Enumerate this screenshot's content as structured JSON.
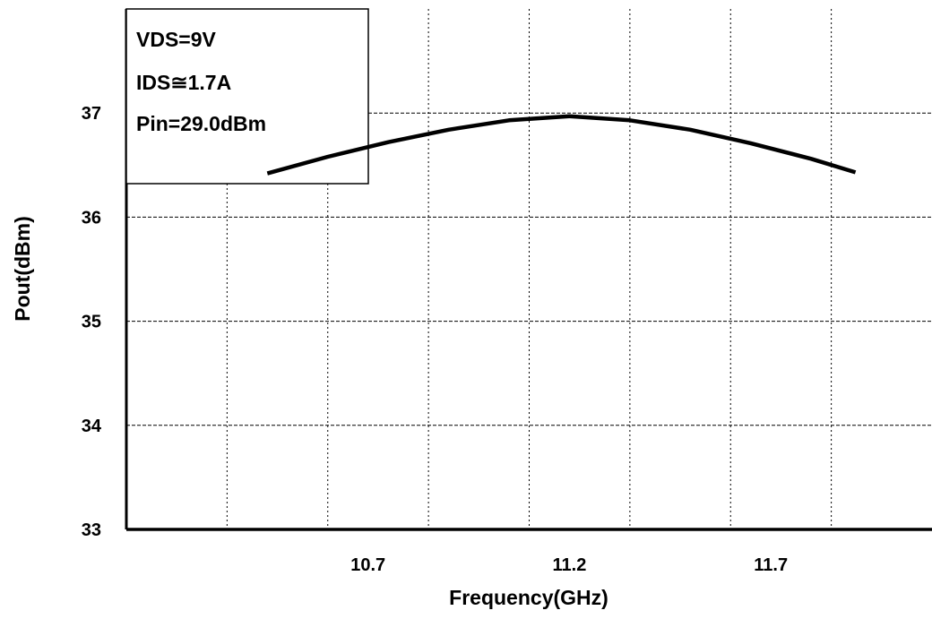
{
  "chart_data": {
    "type": "line",
    "xlabel": "Frequency(GHz)",
    "ylabel": "Pout(dBm)",
    "xlim": [
      10.1,
      12.1
    ],
    "ylim": [
      33,
      38
    ],
    "x_ticks": [
      "10.7",
      "11.2",
      "11.7"
    ],
    "x_tick_values": [
      10.7,
      11.2,
      11.7
    ],
    "y_ticks": [
      "33",
      "34",
      "35",
      "36",
      "37"
    ],
    "grid": true,
    "annotation": [
      "VDS=9V",
      "IDS≅1.7A",
      "Pin=29.0dBm"
    ],
    "series": [
      {
        "x": [
          10.45,
          10.6,
          10.75,
          10.9,
          11.05,
          11.2,
          11.35,
          11.5,
          11.65,
          11.8,
          11.91
        ],
        "values": [
          36.42,
          36.58,
          36.72,
          36.84,
          36.93,
          36.97,
          36.93,
          36.84,
          36.71,
          36.56,
          36.43
        ]
      }
    ],
    "colors": {
      "line": "#000000",
      "grid": "#000000"
    }
  }
}
